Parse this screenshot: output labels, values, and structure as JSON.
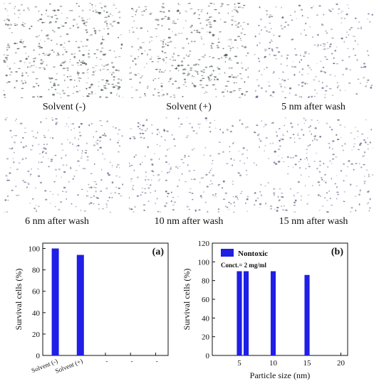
{
  "micrographs": [
    {
      "caption": "Solvent (-)",
      "tint": "green"
    },
    {
      "caption": "Solvent (+)",
      "tint": "green"
    },
    {
      "caption": "5 nm after wash",
      "tint": "purple"
    },
    {
      "caption": "6 nm after wash",
      "tint": "purple"
    },
    {
      "caption": "10 nm after wash",
      "tint": "purple"
    },
    {
      "caption": "15 nm after wash",
      "tint": "purple"
    }
  ],
  "colors": {
    "bar": "#1f1fe6",
    "axis": "#111111"
  },
  "chart_data": [
    {
      "type": "bar",
      "panel_label": "(a)",
      "categories": [
        "Solvent (-)",
        "Solvent (+)",
        "-",
        "-",
        "-"
      ],
      "values": [
        100,
        94,
        null,
        null,
        null
      ],
      "ylabel": "Survival cells (%)",
      "xlabel": "",
      "ylim": [
        0,
        105
      ],
      "yticks": [
        0,
        20,
        40,
        60,
        80,
        100
      ],
      "grid": false
    },
    {
      "type": "bar",
      "panel_label": "(b)",
      "x": [
        5,
        6,
        10,
        15
      ],
      "values": [
        90,
        90,
        90,
        86
      ],
      "legend": [
        "Nontoxic"
      ],
      "annotation": "Conct.= 2 mg/ml",
      "xlabel": "Particle size (nm)",
      "ylabel": "Survival cells (%)",
      "xlim": [
        1,
        21
      ],
      "ylim": [
        0,
        120
      ],
      "xticks": [
        5,
        10,
        15,
        20
      ],
      "yticks": [
        0,
        20,
        40,
        60,
        80,
        100,
        120
      ],
      "legend_position": "top-left",
      "grid": false
    }
  ]
}
